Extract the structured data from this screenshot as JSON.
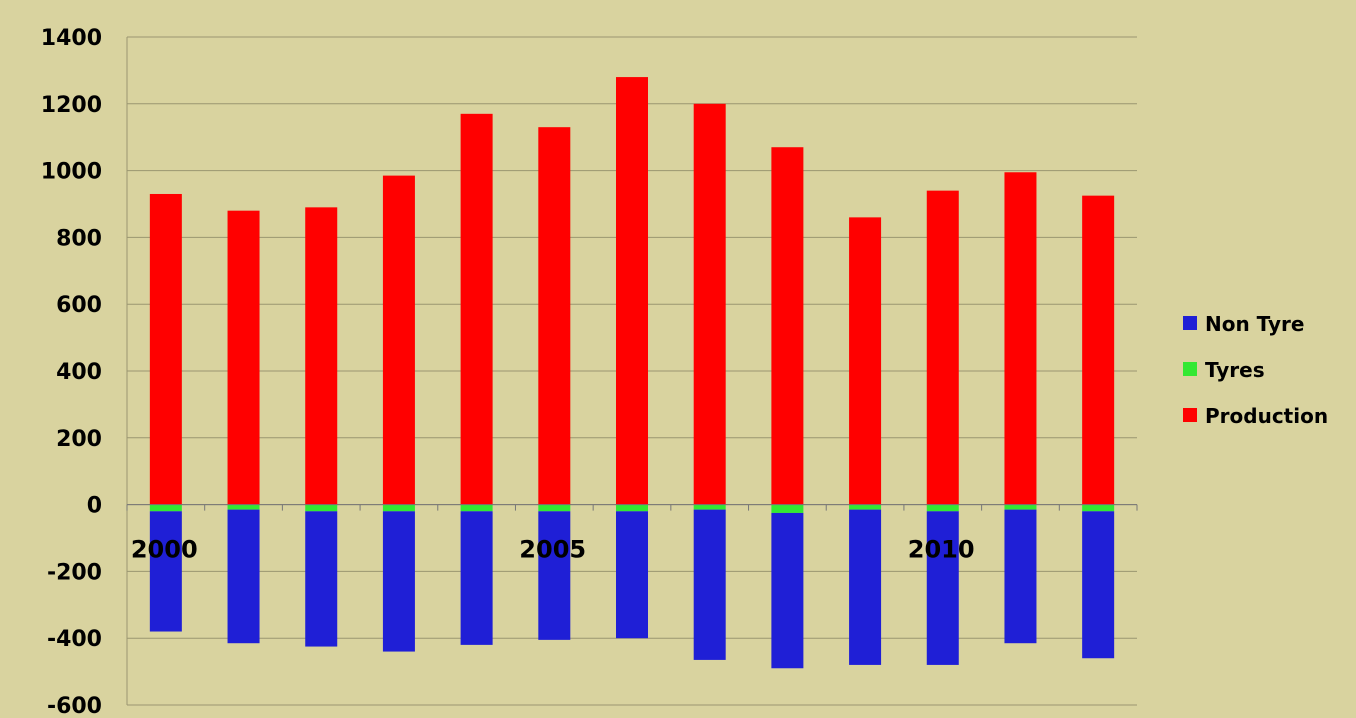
{
  "chart_data": {
    "type": "bar",
    "title": "",
    "xlabel": "",
    "ylabel": "",
    "ylim": [
      -600,
      1400
    ],
    "y_ticks": [
      1400,
      1200,
      1000,
      800,
      600,
      400,
      200,
      0,
      -200,
      -400,
      -600
    ],
    "y_tick_labels": [
      "1400",
      "1200",
      "1000",
      "800",
      "600",
      "400",
      "200",
      "0",
      "-200",
      "-400",
      "-600"
    ],
    "x": [
      2000,
      2001,
      2002,
      2003,
      2004,
      2005,
      2006,
      2007,
      2008,
      2009,
      2010,
      2011,
      2012
    ],
    "x_tick_labels": [
      {
        "label": "2000",
        "at": 2000
      },
      {
        "label": "2005",
        "at": 2005
      },
      {
        "label": "2010",
        "at": 2010
      }
    ],
    "grid": true,
    "legend_position": "right",
    "series": [
      {
        "name": "Non Tyre",
        "color": "#1f1fd6",
        "values": [
          -360,
          -400,
          -405,
          -420,
          -400,
          -385,
          -380,
          -450,
          -465,
          -465,
          -460,
          -400,
          -440
        ]
      },
      {
        "name": "Tyres",
        "color": "#33e833",
        "values": [
          -20,
          -15,
          -20,
          -20,
          -20,
          -20,
          -20,
          -15,
          -25,
          -15,
          -20,
          -15,
          -20
        ]
      },
      {
        "name": "Production",
        "color": "#ff0000",
        "values": [
          930,
          880,
          890,
          985,
          1170,
          1130,
          1280,
          1200,
          1070,
          860,
          940,
          995,
          925
        ]
      }
    ],
    "legend_order": [
      "Non Tyre",
      "Tyres",
      "Production"
    ]
  }
}
